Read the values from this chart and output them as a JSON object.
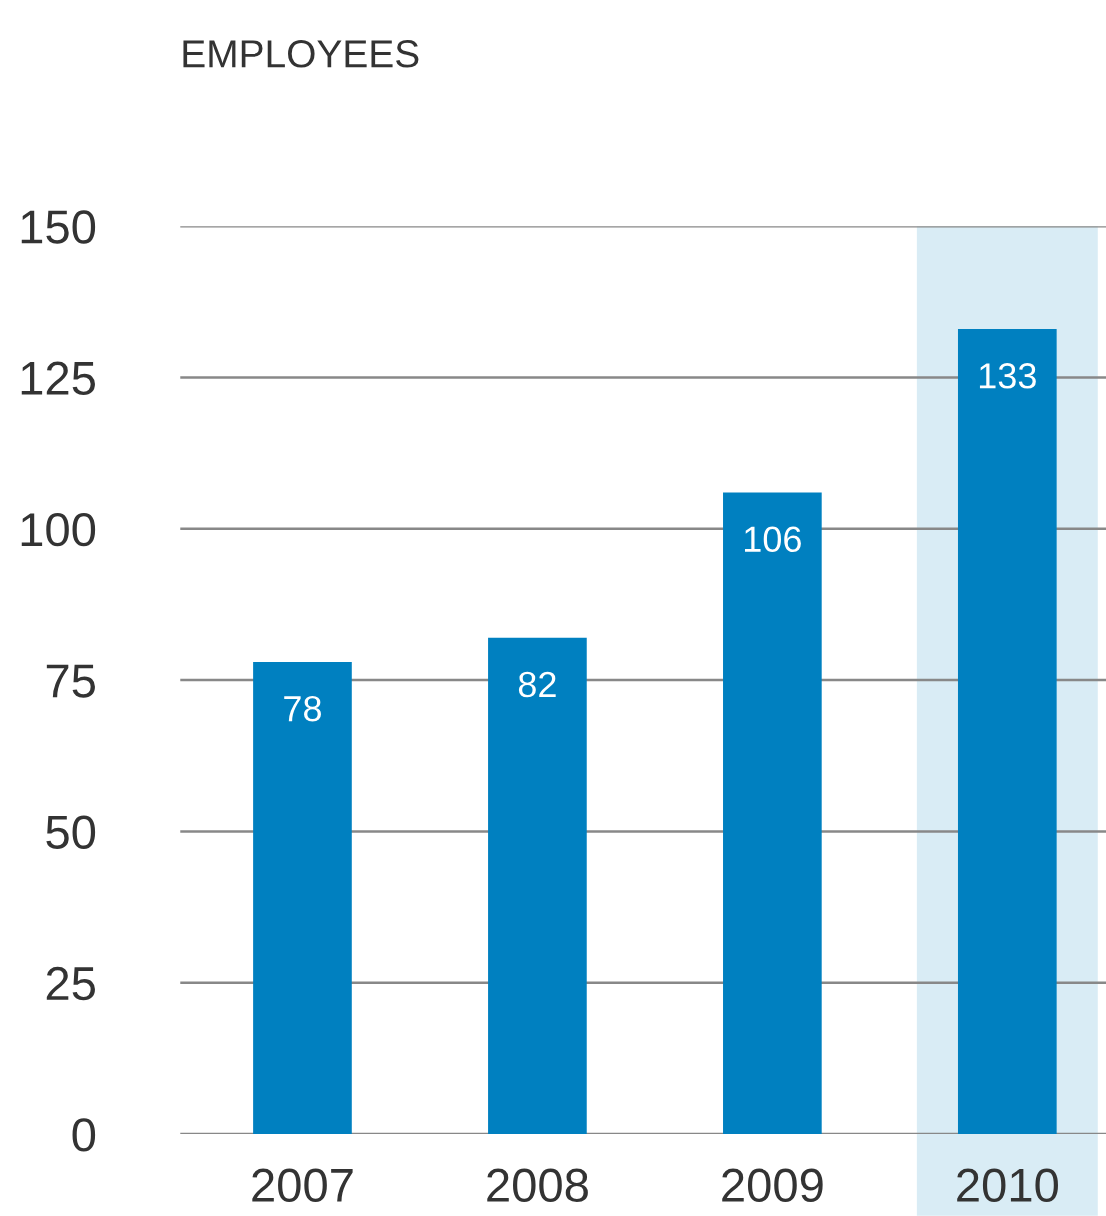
{
  "chart_data": {
    "type": "bar",
    "title": "EMPLOYEES",
    "categories": [
      "2007",
      "2008",
      "2009",
      "2010"
    ],
    "values": [
      78,
      82,
      106,
      133
    ],
    "color": "#0080c0",
    "ylim": [
      0,
      150
    ],
    "yticks": [
      0,
      25,
      50,
      75,
      100,
      125,
      150
    ],
    "grid": "y",
    "data_labels": true,
    "bands": [
      {
        "axis": "x",
        "from": "2010",
        "to": "2010",
        "color": "#d9ecf5"
      }
    ]
  }
}
